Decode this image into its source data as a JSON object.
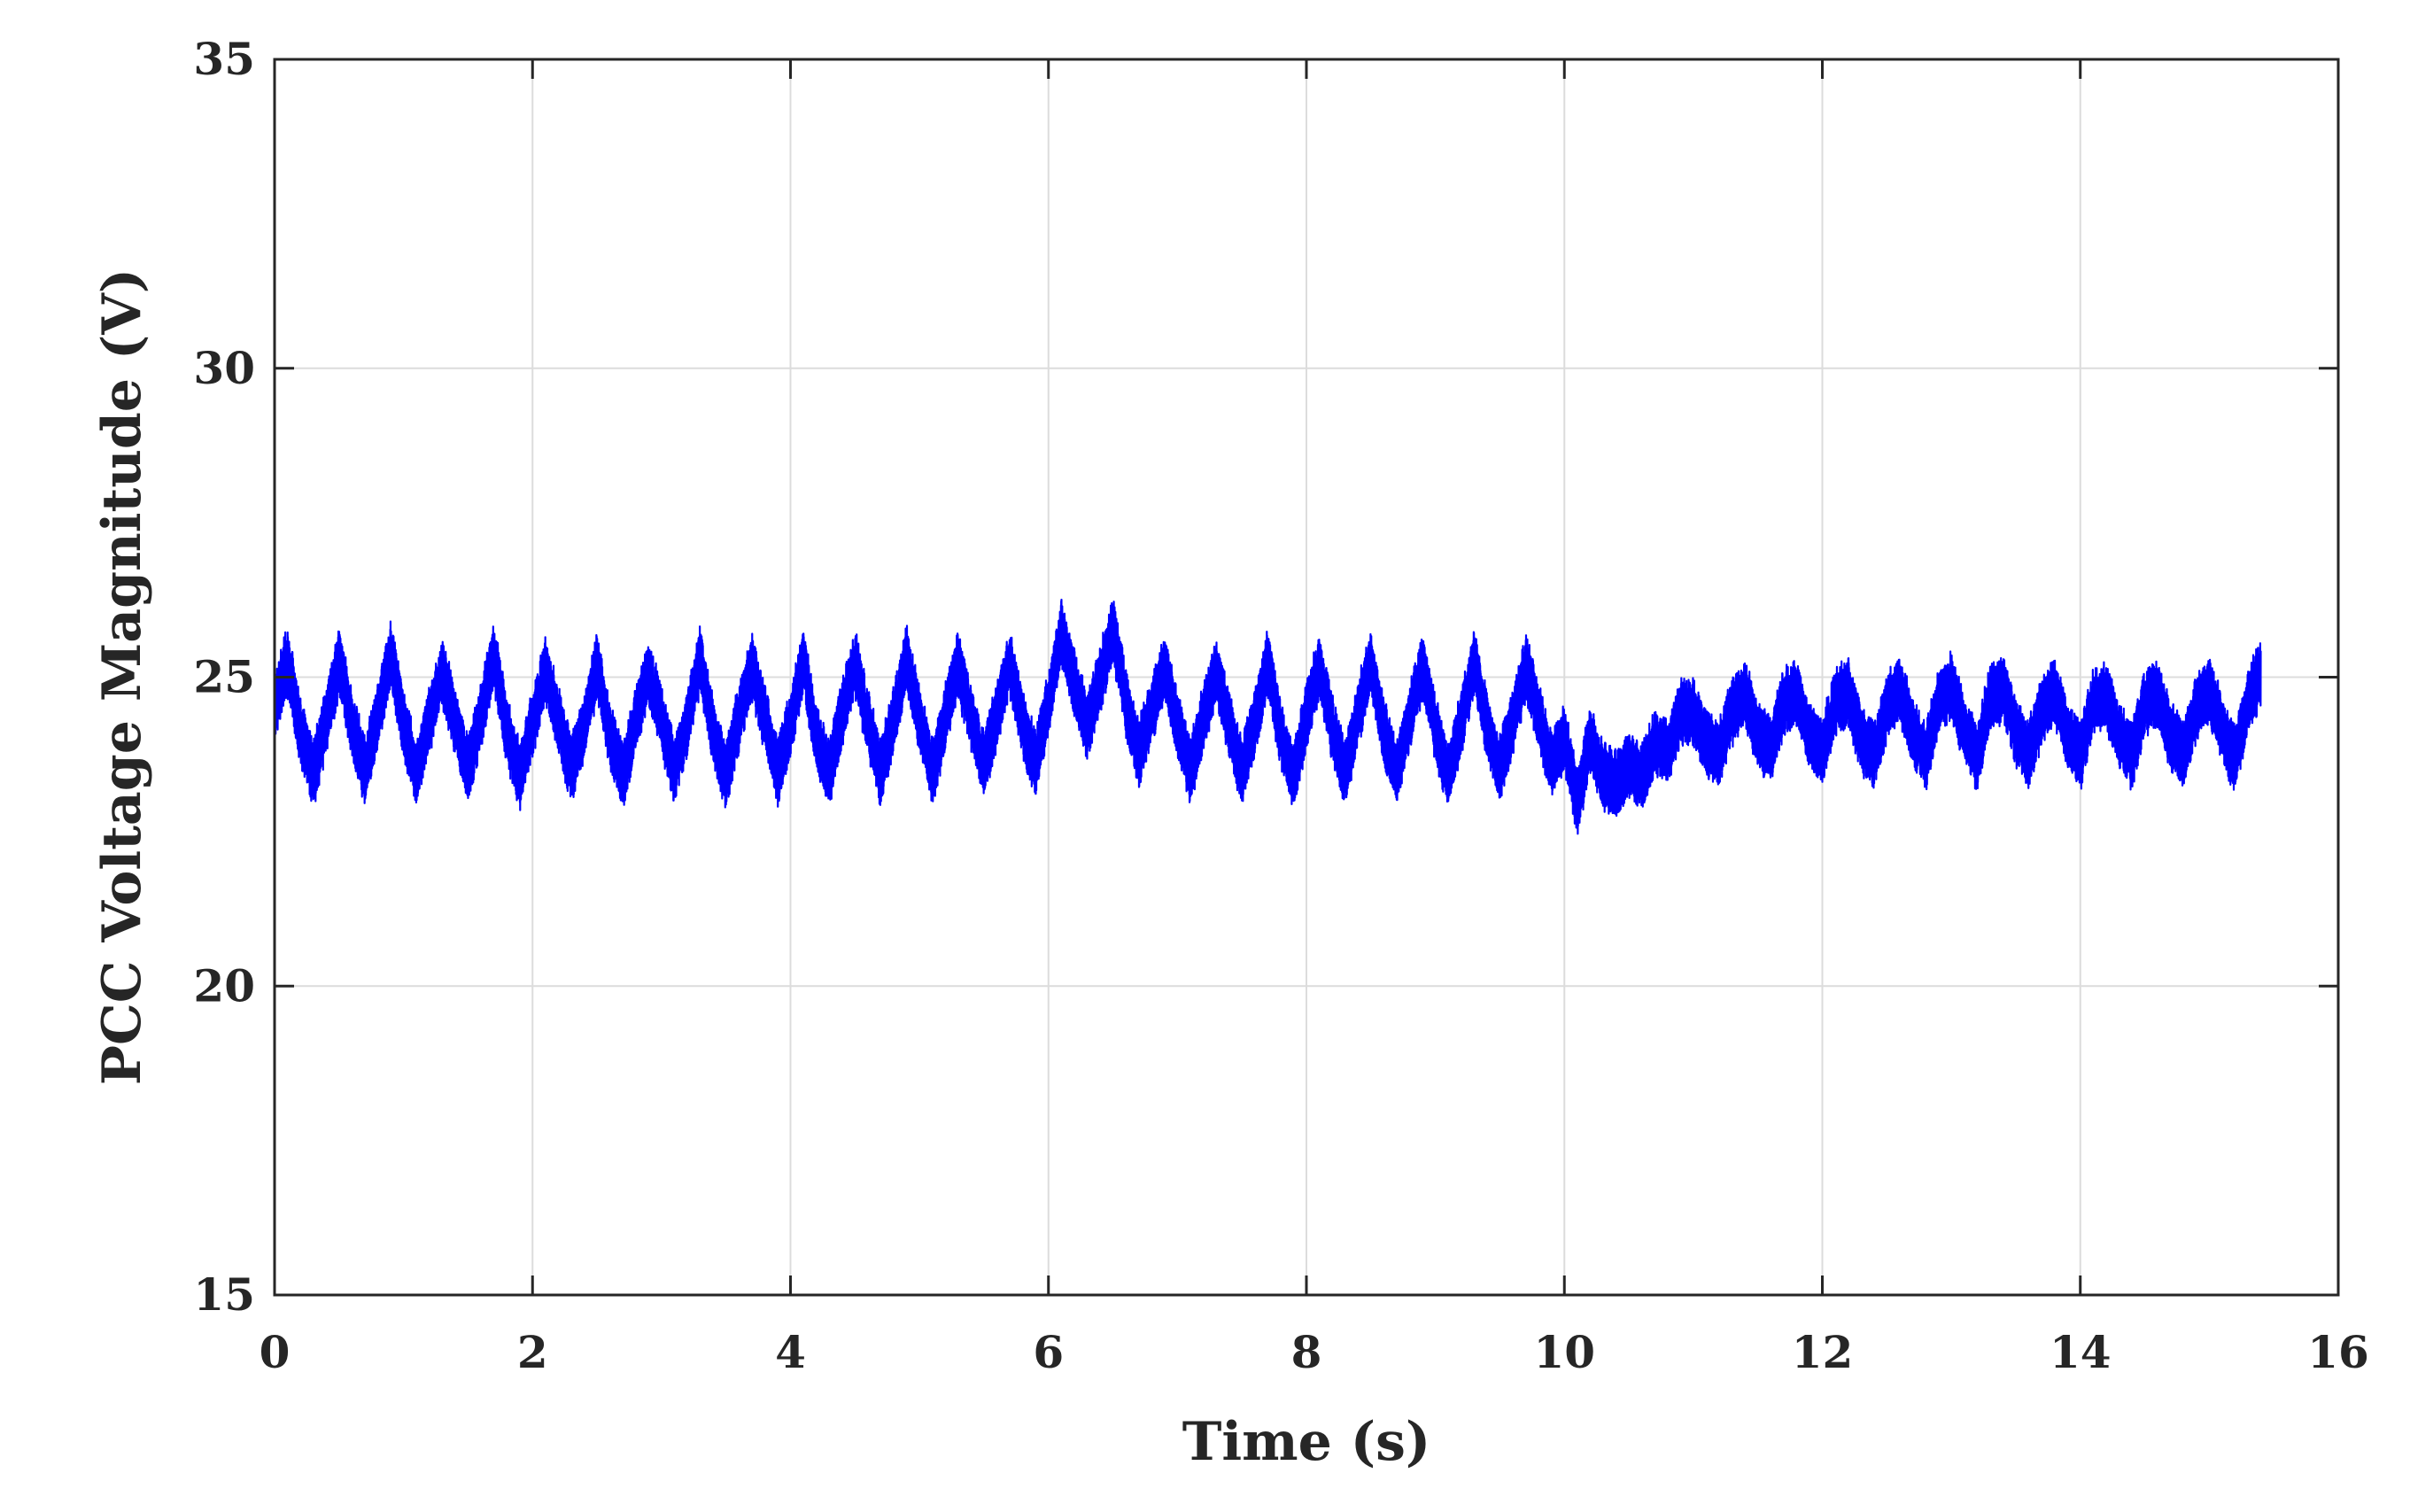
{
  "chart_data": {
    "type": "line",
    "title": "",
    "xlabel": "Time (s)",
    "ylabel": "PCC Voltage Magnitude (V)",
    "xlim": [
      0,
      16
    ],
    "ylim": [
      15,
      35
    ],
    "xticks": [
      0,
      2,
      4,
      6,
      8,
      10,
      12,
      14,
      16
    ],
    "yticks": [
      15,
      20,
      25,
      30,
      35
    ],
    "xtick_labels": [
      "0",
      "2",
      "4",
      "6",
      "8",
      "10",
      "12",
      "14",
      "16"
    ],
    "ytick_labels": [
      "15",
      "20",
      "25",
      "30",
      "35"
    ],
    "grid": true,
    "legend": "none",
    "series": [
      {
        "color": "#0000ff",
        "description_values": {
          "mean": 24.4,
          "oscillation_period_s": 0.4,
          "typical_peak": 26.7,
          "typical_trough": 22.3,
          "ripple_amplitude": 0.45
        },
        "x": [
          0,
          0.1,
          0.2,
          0.3,
          0.4,
          0.5,
          0.6,
          0.7,
          0.8,
          0.9,
          1.0,
          1.1,
          1.2,
          1.3,
          1.4,
          1.5,
          1.6,
          1.7,
          1.8,
          1.9,
          2.0,
          2.1,
          2.2,
          2.3,
          2.4,
          2.5,
          2.6,
          2.7,
          2.8,
          2.9,
          3.0,
          3.1,
          3.2,
          3.3,
          3.4,
          3.5,
          3.6,
          3.7,
          3.8,
          3.9,
          4.0,
          4.1,
          4.2,
          4.3,
          4.4,
          4.5,
          4.6,
          4.7,
          4.8,
          4.9,
          5.0,
          5.1,
          5.2,
          5.3,
          5.4,
          5.5,
          5.6,
          5.7,
          5.8,
          5.9,
          6.0,
          6.1,
          6.2,
          6.3,
          6.4,
          6.5,
          6.6,
          6.7,
          6.8,
          6.9,
          7.0,
          7.1,
          7.2,
          7.3,
          7.4,
          7.5,
          7.6,
          7.7,
          7.8,
          7.9,
          8.0,
          8.1,
          8.2,
          8.3,
          8.4,
          8.5,
          8.6,
          8.7,
          8.8,
          8.9,
          9.0,
          9.1,
          9.2,
          9.3,
          9.4,
          9.5,
          9.6,
          9.7,
          9.8,
          9.9,
          10.0,
          10.1,
          10.2,
          10.3,
          10.4,
          10.5,
          10.6,
          10.7,
          10.8,
          10.9,
          11.0,
          11.1,
          11.2,
          11.3,
          11.4,
          11.5,
          11.6,
          11.7,
          11.8,
          11.9,
          12.0,
          12.1,
          12.2,
          12.3,
          12.4,
          12.5,
          12.6,
          12.7,
          12.8,
          12.9,
          13.0,
          13.1,
          13.2,
          13.3,
          13.4,
          13.5,
          13.6,
          13.7,
          13.8,
          13.9,
          14.0,
          14.1,
          14.2,
          14.3,
          14.4,
          14.5,
          14.6,
          14.7,
          14.8,
          14.9,
          15.0,
          15.1,
          15.2,
          15.3,
          15.4,
          15.5,
          15.6,
          15.7,
          15.8,
          15.9,
          16.0
        ],
        "envelope_top": [
          26.2,
          26.9,
          26.1,
          24.7,
          25.2,
          26.8,
          26.0,
          24.5,
          25.3,
          26.9,
          26.1,
          24.6,
          25.2,
          26.6,
          26.0,
          24.5,
          25.4,
          26.9,
          26.0,
          24.6,
          25.0,
          26.6,
          26.1,
          24.4,
          25.1,
          26.6,
          26.0,
          24.6,
          25.2,
          26.6,
          26.2,
          24.5,
          25.1,
          26.9,
          26.2,
          24.5,
          25.3,
          26.7,
          26.1,
          24.4,
          25.2,
          26.9,
          26.0,
          24.7,
          25.3,
          26.9,
          26.1,
          24.6,
          25.3,
          26.9,
          26.2,
          24.6,
          25.1,
          26.6,
          26.1,
          24.7,
          25.4,
          26.8,
          26.0,
          24.9,
          25.6,
          27.5,
          26.6,
          25.4,
          26.2,
          27.6,
          26.4,
          25.0,
          25.3,
          26.6,
          26.0,
          24.6,
          25.2,
          26.6,
          26.0,
          24.5,
          25.2,
          26.8,
          26.0,
          24.4,
          25.3,
          26.9,
          26.0,
          24.6,
          25.3,
          26.9,
          26.0,
          24.6,
          25.2,
          26.6,
          26.1,
          24.5,
          25.1,
          26.9,
          26.1,
          24.5,
          25.2,
          26.6,
          26.2,
          24.6,
          25.0,
          24.2,
          25.8,
          23.9,
          24.5,
          25.6,
          24.4,
          24.8,
          25.6,
          26.5,
          25.7,
          24.4,
          25.3,
          26.6,
          26.1,
          24.5,
          25.3,
          26.9,
          26.1,
          24.5,
          25.2,
          26.9,
          26.1,
          24.4,
          25.2,
          26.6,
          26.1,
          24.6,
          25.4,
          26.9,
          26.2,
          24.5,
          25.2,
          26.9,
          26.2,
          24.6,
          25.3,
          26.6,
          26.1,
          24.5,
          25.2,
          26.9,
          26.0,
          24.5,
          25.2,
          26.9,
          26.1,
          24.5,
          25.3,
          26.6,
          26.1,
          24.5,
          25.2,
          26.9,
          26.1,
          24.6,
          25.3,
          26.6,
          25.7
        ],
        "envelope_bottom": [
          22.9,
          23.6,
          22.2,
          22.1,
          23.4,
          23.7,
          22.5,
          22.4,
          23.4,
          23.8,
          22.4,
          22.3,
          23.4,
          23.6,
          22.6,
          22.5,
          23.4,
          23.8,
          22.3,
          22.2,
          23.5,
          23.6,
          22.5,
          22.6,
          23.3,
          23.8,
          22.1,
          22.2,
          23.4,
          23.6,
          22.4,
          22.5,
          23.4,
          23.7,
          22.0,
          22.3,
          23.4,
          23.6,
          22.6,
          22.5,
          23.3,
          23.7,
          22.0,
          22.2,
          23.5,
          23.6,
          22.4,
          22.3,
          23.3,
          23.7,
          22.5,
          22.3,
          23.6,
          23.8,
          22.6,
          22.5,
          23.4,
          23.7,
          22.4,
          22.3,
          23.5,
          24.0,
          23.2,
          23.0,
          23.7,
          24.0,
          22.8,
          22.5,
          23.6,
          23.7,
          22.5,
          22.3,
          23.5,
          23.6,
          22.5,
          22.4,
          23.3,
          23.7,
          22.2,
          22.3,
          23.4,
          23.5,
          22.3,
          22.3,
          23.5,
          23.6,
          22.2,
          22.3,
          23.5,
          23.8,
          22.2,
          22.3,
          23.4,
          23.6,
          22.3,
          22.5,
          23.4,
          23.7,
          22.6,
          22.5,
          23.1,
          21.7,
          22.2,
          22.9,
          22.0,
          21.6,
          22.3,
          23.0,
          22.0,
          22.4,
          23.1,
          23.5,
          22.2,
          22.3,
          23.4,
          23.6,
          22.4,
          22.3,
          23.4,
          23.6,
          22.4,
          22.3,
          23.4,
          23.6,
          22.3,
          22.4,
          23.5,
          23.7,
          22.0,
          22.3,
          23.5,
          23.8,
          22.2,
          22.4,
          23.5,
          23.6,
          22.2,
          22.3,
          23.5,
          23.6,
          22.2,
          22.3,
          23.4,
          23.6,
          22.2,
          22.3,
          23.4,
          23.6,
          22.2,
          22.4,
          23.5,
          23.8,
          22.1,
          22.3,
          24.1
        ]
      }
    ]
  },
  "colors": {
    "line": "#0000ff",
    "grid": "#dcdcdc",
    "axis": "#262626"
  }
}
